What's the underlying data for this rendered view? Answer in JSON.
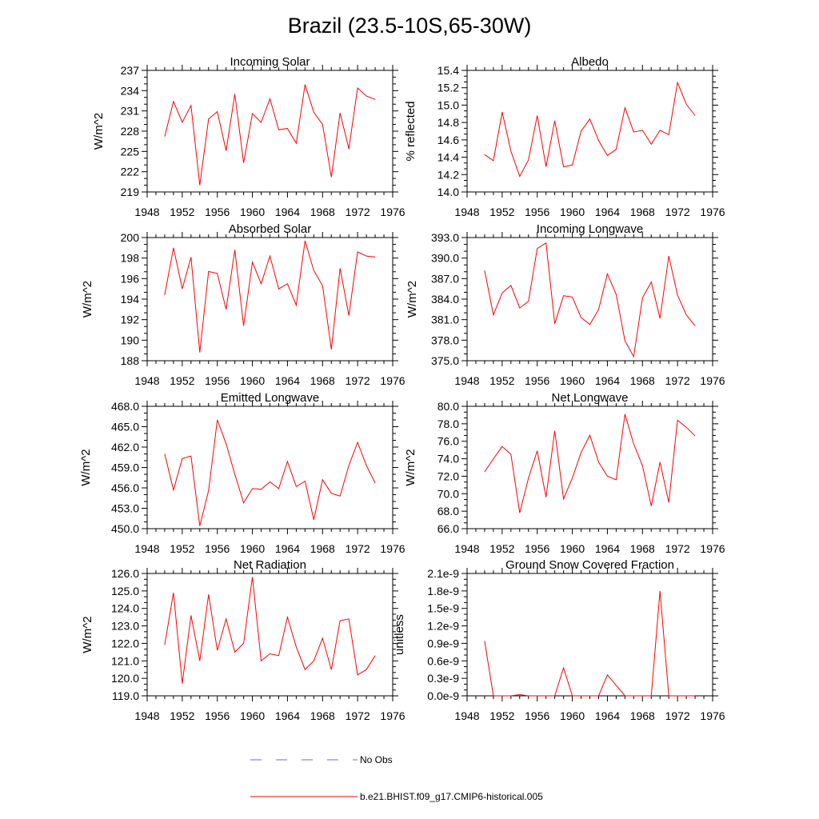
{
  "title": "Brazil (23.5-10S,65-30W)",
  "legend": {
    "no_obs_label": "No Obs",
    "model_label": "b.e21.BHIST.f09_g17.CMIP6-historical.005",
    "no_obs_color": "#6a6acd",
    "model_color": "#ff0000"
  },
  "chart_data": [
    {
      "type": "line",
      "title": "Incoming Solar",
      "ylabel": "W/m^2",
      "xlabel": "",
      "xlim": [
        1948,
        1976
      ],
      "xticks": [
        1948,
        1952,
        1956,
        1960,
        1964,
        1968,
        1972,
        1976
      ],
      "xtick_labels": [
        "1948",
        "1952",
        "1956",
        "1960",
        "1964",
        "1968",
        "1972",
        "1976"
      ],
      "ylim": [
        219,
        237
      ],
      "yticks": [
        219,
        222,
        225,
        228,
        231,
        234,
        237
      ],
      "ytick_labels": [
        "219",
        "222",
        "225",
        "228",
        "231",
        "234",
        "237"
      ],
      "series": [
        {
          "name": "b.e21.BHIST.f09_g17.CMIP6-historical.005",
          "color": "#ff0000",
          "x": [
            1950,
            1951,
            1952,
            1953,
            1954,
            1955,
            1956,
            1957,
            1958,
            1959,
            1960,
            1961,
            1962,
            1963,
            1964,
            1965,
            1966,
            1967,
            1968,
            1969,
            1970,
            1971,
            1972,
            1973,
            1974
          ],
          "y": [
            227.2,
            232.4,
            229.3,
            231.8,
            220.0,
            229.8,
            230.9,
            225.1,
            233.5,
            223.3,
            230.6,
            229.3,
            232.8,
            228.2,
            228.4,
            226.2,
            234.9,
            230.8,
            229.0,
            221.2,
            230.7,
            225.4,
            234.4,
            233.2,
            232.7
          ]
        }
      ]
    },
    {
      "type": "line",
      "title": "Albedo",
      "ylabel": "% reflected",
      "xlabel": "",
      "xlim": [
        1948,
        1976
      ],
      "xticks": [
        1948,
        1952,
        1956,
        1960,
        1964,
        1968,
        1972,
        1976
      ],
      "xtick_labels": [
        "1948",
        "1952",
        "1956",
        "1960",
        "1964",
        "1968",
        "1972",
        "1976"
      ],
      "ylim": [
        14.0,
        15.4
      ],
      "yticks": [
        14.0,
        14.2,
        14.4,
        14.6,
        14.8,
        15.0,
        15.2,
        15.4
      ],
      "ytick_labels": [
        "14.0",
        "14.2",
        "14.4",
        "14.6",
        "14.8",
        "15.0",
        "15.2",
        "15.4"
      ],
      "series": [
        {
          "name": "b.e21.BHIST.f09_g17.CMIP6-historical.005",
          "color": "#ff0000",
          "x": [
            1950,
            1951,
            1952,
            1953,
            1954,
            1955,
            1956,
            1957,
            1958,
            1959,
            1960,
            1961,
            1962,
            1963,
            1964,
            1965,
            1966,
            1967,
            1968,
            1969,
            1970,
            1971,
            1972,
            1973,
            1974
          ],
          "y": [
            14.43,
            14.36,
            14.92,
            14.47,
            14.18,
            14.37,
            14.88,
            14.29,
            14.82,
            14.29,
            14.31,
            14.7,
            14.84,
            14.59,
            14.42,
            14.49,
            14.97,
            14.69,
            14.71,
            14.55,
            14.71,
            14.66,
            15.26,
            15.01,
            14.88
          ]
        }
      ]
    },
    {
      "type": "line",
      "title": "Absorbed Solar",
      "ylabel": "W/m^2",
      "xlabel": "",
      "xlim": [
        1948,
        1976
      ],
      "xticks": [
        1948,
        1952,
        1956,
        1960,
        1964,
        1968,
        1972,
        1976
      ],
      "xtick_labels": [
        "1948",
        "1952",
        "1956",
        "1960",
        "1964",
        "1968",
        "1972",
        "1976"
      ],
      "ylim": [
        188,
        200
      ],
      "yticks": [
        188,
        190,
        192,
        194,
        196,
        198,
        200
      ],
      "ytick_labels": [
        "188",
        "190",
        "192",
        "194",
        "196",
        "198",
        "200"
      ],
      "series": [
        {
          "name": "b.e21.BHIST.f09_g17.CMIP6-historical.005",
          "color": "#ff0000",
          "x": [
            1950,
            1951,
            1952,
            1953,
            1954,
            1955,
            1956,
            1957,
            1958,
            1959,
            1960,
            1961,
            1962,
            1963,
            1964,
            1965,
            1966,
            1967,
            1968,
            1969,
            1970,
            1971,
            1972,
            1973,
            1974
          ],
          "y": [
            194.4,
            199.0,
            195.0,
            198.1,
            188.8,
            196.7,
            196.5,
            193.0,
            198.8,
            191.4,
            197.6,
            195.5,
            198.2,
            195.0,
            195.5,
            193.4,
            199.7,
            196.8,
            195.3,
            189.1,
            197.0,
            192.4,
            198.6,
            198.2,
            198.1
          ]
        }
      ]
    },
    {
      "type": "line",
      "title": "Incoming Longwave",
      "ylabel": "W/m^2",
      "xlabel": "",
      "xlim": [
        1948,
        1976
      ],
      "xticks": [
        1948,
        1952,
        1956,
        1960,
        1964,
        1968,
        1972,
        1976
      ],
      "xtick_labels": [
        "1948",
        "1952",
        "1956",
        "1960",
        "1964",
        "1968",
        "1972",
        "1976"
      ],
      "ylim": [
        375.0,
        393.0
      ],
      "yticks": [
        375.0,
        378.0,
        381.0,
        384.0,
        387.0,
        390.0,
        393.0
      ],
      "ytick_labels": [
        "375.0",
        "378.0",
        "381.0",
        "384.0",
        "387.0",
        "390.0",
        "393.0"
      ],
      "series": [
        {
          "name": "b.e21.BHIST.f09_g17.CMIP6-historical.005",
          "color": "#ff0000",
          "x": [
            1950,
            1951,
            1952,
            1953,
            1954,
            1955,
            1956,
            1957,
            1958,
            1959,
            1960,
            1961,
            1962,
            1963,
            1964,
            1965,
            1966,
            1967,
            1968,
            1969,
            1970,
            1971,
            1972,
            1973,
            1974
          ],
          "y": [
            388.2,
            381.7,
            384.9,
            386.0,
            382.7,
            383.7,
            391.4,
            392.2,
            380.4,
            384.5,
            384.3,
            381.3,
            380.3,
            382.5,
            387.7,
            384.7,
            377.9,
            375.6,
            384.2,
            386.5,
            381.2,
            390.3,
            384.6,
            381.7,
            380.1
          ]
        }
      ]
    },
    {
      "type": "line",
      "title": "Emitted Longwave",
      "ylabel": "W/m^2",
      "xlabel": "",
      "xlim": [
        1948,
        1976
      ],
      "xticks": [
        1948,
        1952,
        1956,
        1960,
        1964,
        1968,
        1972,
        1976
      ],
      "xtick_labels": [
        "1948",
        "1952",
        "1956",
        "1960",
        "1964",
        "1968",
        "1972",
        "1976"
      ],
      "ylim": [
        450.0,
        468.0
      ],
      "yticks": [
        450.0,
        453.0,
        456.0,
        459.0,
        462.0,
        465.0,
        468.0
      ],
      "ytick_labels": [
        "450.0",
        "453.0",
        "456.0",
        "459.0",
        "462.0",
        "465.0",
        "468.0"
      ],
      "series": [
        {
          "name": "b.e21.BHIST.f09_g17.CMIP6-historical.005",
          "color": "#ff0000",
          "x": [
            1950,
            1951,
            1952,
            1953,
            1954,
            1955,
            1956,
            1957,
            1958,
            1959,
            1960,
            1961,
            1962,
            1963,
            1964,
            1965,
            1966,
            1967,
            1968,
            1969,
            1970,
            1971,
            1972,
            1973,
            1974
          ],
          "y": [
            461.0,
            455.7,
            460.3,
            460.7,
            450.4,
            455.6,
            466.0,
            462.5,
            458.0,
            453.8,
            455.9,
            455.8,
            456.9,
            455.9,
            459.9,
            456.2,
            457.0,
            451.3,
            457.2,
            455.2,
            454.8,
            459.3,
            462.7,
            459.3,
            456.7
          ]
        }
      ]
    },
    {
      "type": "line",
      "title": "Net Longwave",
      "ylabel": "W/m^2",
      "xlabel": "",
      "xlim": [
        1948,
        1976
      ],
      "xticks": [
        1948,
        1952,
        1956,
        1960,
        1964,
        1968,
        1972,
        1976
      ],
      "xtick_labels": [
        "1948",
        "1952",
        "1956",
        "1960",
        "1964",
        "1968",
        "1972",
        "1976"
      ],
      "ylim": [
        66.0,
        80.0
      ],
      "yticks": [
        66.0,
        68.0,
        70.0,
        72.0,
        74.0,
        76.0,
        78.0,
        80.0
      ],
      "ytick_labels": [
        "66.0",
        "68.0",
        "70.0",
        "72.0",
        "74.0",
        "76.0",
        "78.0",
        "80.0"
      ],
      "series": [
        {
          "name": "b.e21.BHIST.f09_g17.CMIP6-historical.005",
          "color": "#ff0000",
          "x": [
            1950,
            1951,
            1952,
            1953,
            1954,
            1955,
            1956,
            1957,
            1958,
            1959,
            1960,
            1961,
            1962,
            1963,
            1964,
            1965,
            1966,
            1967,
            1968,
            1969,
            1970,
            1971,
            1972,
            1973,
            1974
          ],
          "y": [
            72.5,
            74.0,
            75.4,
            74.5,
            67.8,
            71.8,
            74.9,
            69.6,
            77.2,
            69.4,
            71.8,
            74.7,
            76.7,
            73.6,
            72.0,
            71.6,
            79.1,
            75.7,
            73.2,
            68.6,
            73.6,
            69.0,
            78.4,
            77.6,
            76.6
          ]
        }
      ]
    },
    {
      "type": "line",
      "title": "Net Radiation",
      "ylabel": "W/m^2",
      "xlabel": "",
      "xlim": [
        1948,
        1976
      ],
      "xticks": [
        1948,
        1952,
        1956,
        1960,
        1964,
        1968,
        1972,
        1976
      ],
      "xtick_labels": [
        "1948",
        "1952",
        "1956",
        "1960",
        "1964",
        "1968",
        "1972",
        "1976"
      ],
      "ylim": [
        119.0,
        126.0
      ],
      "yticks": [
        119.0,
        120.0,
        121.0,
        122.0,
        123.0,
        124.0,
        125.0,
        126.0
      ],
      "ytick_labels": [
        "119.0",
        "120.0",
        "121.0",
        "122.0",
        "123.0",
        "124.0",
        "125.0",
        "126.0"
      ],
      "series": [
        {
          "name": "b.e21.BHIST.f09_g17.CMIP6-historical.005",
          "color": "#ff0000",
          "x": [
            1950,
            1951,
            1952,
            1953,
            1954,
            1955,
            1956,
            1957,
            1958,
            1959,
            1960,
            1961,
            1962,
            1963,
            1964,
            1965,
            1966,
            1967,
            1968,
            1969,
            1970,
            1971,
            1972,
            1973,
            1974
          ],
          "y": [
            121.9,
            124.9,
            119.7,
            123.6,
            121.0,
            124.8,
            121.6,
            123.4,
            121.5,
            122.0,
            125.8,
            121.0,
            121.4,
            121.3,
            123.5,
            121.8,
            120.5,
            121.0,
            122.3,
            120.5,
            123.3,
            123.4,
            120.2,
            120.5,
            121.3
          ]
        }
      ]
    },
    {
      "type": "line",
      "title": "Ground Snow Covered Fraction",
      "ylabel": "unitless",
      "xlabel": "",
      "xlim": [
        1948,
        1976
      ],
      "xticks": [
        1948,
        1952,
        1956,
        1960,
        1964,
        1968,
        1972,
        1976
      ],
      "xtick_labels": [
        "1948",
        "1952",
        "1956",
        "1960",
        "1964",
        "1968",
        "1972",
        "1976"
      ],
      "ylim": [
        0.0,
        2.1
      ],
      "yticks": [
        0.0,
        0.3,
        0.6,
        0.9,
        1.2,
        1.5,
        1.8,
        2.1
      ],
      "ytick_labels": [
        "0.0e-9",
        "0.3e-9",
        "0.6e-9",
        "0.9e-9",
        "1.2e-9",
        "1.5e-9",
        "1.8e-9",
        "2.1e-9"
      ],
      "y_unit_scale": "e-9",
      "series": [
        {
          "name": "b.e21.BHIST.f09_g17.CMIP6-historical.005",
          "color": "#ff0000",
          "x": [
            1950,
            1951,
            1952,
            1953,
            1954,
            1955,
            1956,
            1957,
            1958,
            1959,
            1960,
            1961,
            1962,
            1963,
            1964,
            1965,
            1966,
            1967,
            1968,
            1969,
            1970,
            1971,
            1972,
            1973,
            1974
          ],
          "y": [
            0.94,
            0.0,
            0.0,
            0.0,
            0.02,
            0.0,
            0.0,
            0.0,
            0.0,
            0.48,
            0.0,
            0.0,
            0.0,
            0.0,
            0.36,
            0.18,
            0.0,
            0.0,
            0.0,
            0.0,
            1.8,
            0.0,
            0.0,
            0.0,
            0.0
          ]
        }
      ]
    }
  ]
}
